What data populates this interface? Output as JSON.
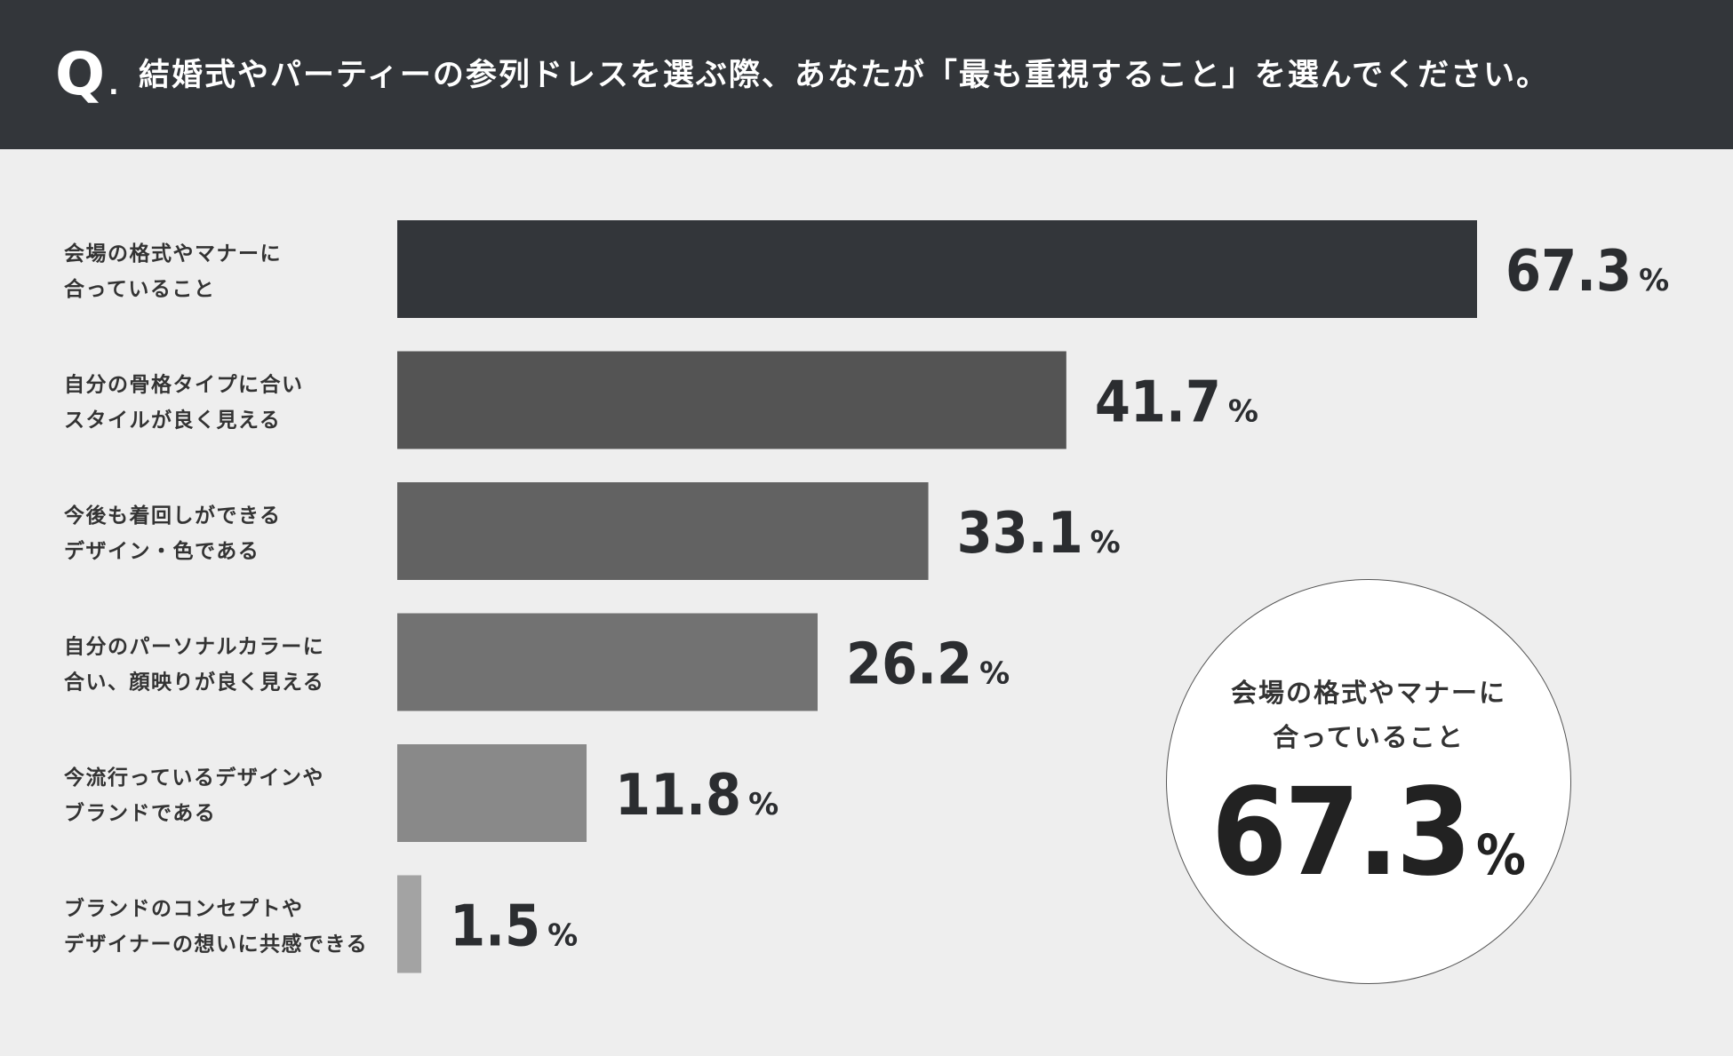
{
  "header": {
    "q_mark": "Q",
    "q_dot": ".",
    "question": "結婚式やパーティーの参列ドレスを選ぶ際、あなたが「最も重視すること」を選んでください。"
  },
  "chart_data": {
    "type": "bar",
    "orientation": "horizontal",
    "title": "",
    "xlabel": "",
    "ylabel": "",
    "unit": "%",
    "xlim": [
      0,
      100
    ],
    "grid": false,
    "categories": [
      [
        "会場の格式やマナーに",
        "合っていること"
      ],
      [
        "自分の骨格タイプに合い",
        "スタイルが良く見える"
      ],
      [
        "今後も着回しができる",
        "デザイン・色である"
      ],
      [
        "自分のパーソナルカラーに",
        "合い、顔映りが良く見える"
      ],
      [
        "今流行っているデザインや",
        "ブランドである"
      ],
      [
        "ブランドのコンセプトや",
        "デザイナーの想いに共感できる"
      ]
    ],
    "values": [
      67.3,
      41.7,
      33.1,
      26.2,
      11.8,
      1.5
    ],
    "value_labels": [
      "67.3",
      "41.7",
      "33.1",
      "26.2",
      "11.8",
      "1.5"
    ],
    "bar_colors": [
      "#33363a",
      "#545454",
      "#626262",
      "#727272",
      "#898989",
      "#a3a3a3"
    ]
  },
  "highlight": {
    "label_lines": [
      "会場の格式やマナーに",
      "合っていること"
    ],
    "value": "67.3",
    "unit": "%"
  }
}
